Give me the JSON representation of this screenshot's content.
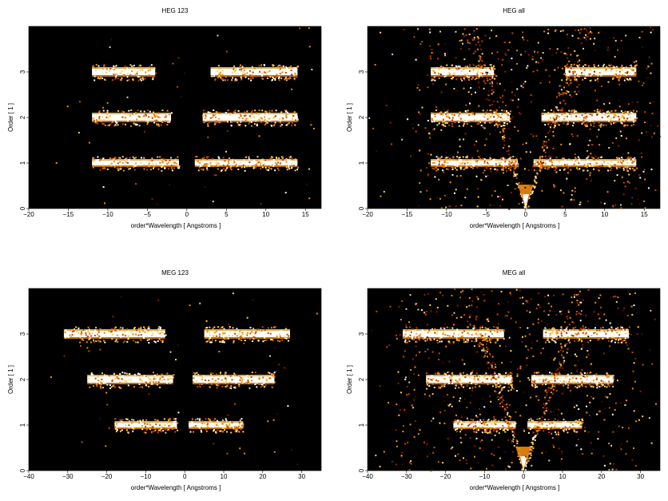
{
  "figure": {
    "background": "#ffffff"
  },
  "colors": {
    "plot_background": "#000000",
    "colormap": [
      "#000000",
      "#3a0a00",
      "#8a1e00",
      "#c44a00",
      "#ee8a10",
      "#ffd060",
      "#ffffff"
    ]
  },
  "chart_data": [
    {
      "type": "heatmap",
      "title": "HEG 123",
      "xlabel": "order*Wavelength [ Angstroms ]",
      "ylabel": "Order [ 1 ]",
      "xlim": [
        -20,
        17
      ],
      "ylim": [
        0,
        4
      ],
      "xticks": [
        -20,
        -15,
        -10,
        -5,
        0,
        5,
        10,
        15
      ],
      "yticks": [
        0,
        1,
        2,
        3
      ],
      "bands": [
        {
          "order": 1,
          "x_start": -12,
          "x_end": -1,
          "intensity": 1.0
        },
        {
          "order": 1,
          "x_start": 1,
          "x_end": 14,
          "intensity": 1.0
        },
        {
          "order": 2,
          "x_start": -12,
          "x_end": -2,
          "intensity": 0.9
        },
        {
          "order": 2,
          "x_start": 2,
          "x_end": 14,
          "intensity": 0.9
        },
        {
          "order": 3,
          "x_start": -12,
          "x_end": -4,
          "intensity": 0.85
        },
        {
          "order": 3,
          "x_start": 3,
          "x_end": 14,
          "intensity": 0.85
        }
      ],
      "zero_order": false,
      "scatter": "low"
    },
    {
      "type": "heatmap",
      "title": "HEG all",
      "xlabel": "order*Wavelength [ Angstroms ]",
      "ylabel": "Order [ 1 ]",
      "xlim": [
        -20,
        17
      ],
      "ylim": [
        0,
        4
      ],
      "xticks": [
        -20,
        -15,
        -10,
        -5,
        0,
        5,
        10,
        15
      ],
      "yticks": [
        0,
        1,
        2,
        3
      ],
      "bands": [
        {
          "order": 1,
          "x_start": -12,
          "x_end": -1,
          "intensity": 1.0
        },
        {
          "order": 1,
          "x_start": 1,
          "x_end": 14,
          "intensity": 1.0
        },
        {
          "order": 2,
          "x_start": -12,
          "x_end": -2,
          "intensity": 0.9
        },
        {
          "order": 2,
          "x_start": 2,
          "x_end": 14,
          "intensity": 0.9
        },
        {
          "order": 3,
          "x_start": -12,
          "x_end": -4,
          "intensity": 0.85
        },
        {
          "order": 3,
          "x_start": 5,
          "x_end": 14,
          "intensity": 0.85
        }
      ],
      "zero_order": true,
      "scatter": "high"
    },
    {
      "type": "heatmap",
      "title": "MEG 123",
      "xlabel": "order*Wavelength [ Angstroms ]",
      "ylabel": "Order [ 1 ]",
      "xlim": [
        -40,
        35
      ],
      "ylim": [
        0,
        4
      ],
      "xticks": [
        -40,
        -30,
        -20,
        -10,
        0,
        10,
        20,
        30
      ],
      "yticks": [
        0,
        1,
        2,
        3
      ],
      "bands": [
        {
          "order": 1,
          "x_start": -18,
          "x_end": -2,
          "intensity": 1.0
        },
        {
          "order": 1,
          "x_start": 1,
          "x_end": 15,
          "intensity": 1.0
        },
        {
          "order": 2,
          "x_start": -25,
          "x_end": -3,
          "intensity": 0.9
        },
        {
          "order": 2,
          "x_start": 2,
          "x_end": 23,
          "intensity": 0.9
        },
        {
          "order": 3,
          "x_start": -31,
          "x_end": -5,
          "intensity": 0.85
        },
        {
          "order": 3,
          "x_start": 5,
          "x_end": 27,
          "intensity": 0.85
        }
      ],
      "zero_order": false,
      "scatter": "low"
    },
    {
      "type": "heatmap",
      "title": "MEG all",
      "xlabel": "order*Wavelength [ Angstroms ]",
      "ylabel": "Order [ 1 ]",
      "xlim": [
        -40,
        35
      ],
      "ylim": [
        0,
        4
      ],
      "xticks": [
        -40,
        -30,
        -20,
        -10,
        0,
        10,
        20,
        30
      ],
      "yticks": [
        0,
        1,
        2,
        3
      ],
      "bands": [
        {
          "order": 1,
          "x_start": -18,
          "x_end": -2,
          "intensity": 1.0
        },
        {
          "order": 1,
          "x_start": 1,
          "x_end": 15,
          "intensity": 1.0
        },
        {
          "order": 2,
          "x_start": -25,
          "x_end": -3,
          "intensity": 0.9
        },
        {
          "order": 2,
          "x_start": 2,
          "x_end": 23,
          "intensity": 0.9
        },
        {
          "order": 3,
          "x_start": -31,
          "x_end": -5,
          "intensity": 0.85
        },
        {
          "order": 3,
          "x_start": 5,
          "x_end": 27,
          "intensity": 0.85
        }
      ],
      "zero_order": true,
      "scatter": "high"
    }
  ]
}
